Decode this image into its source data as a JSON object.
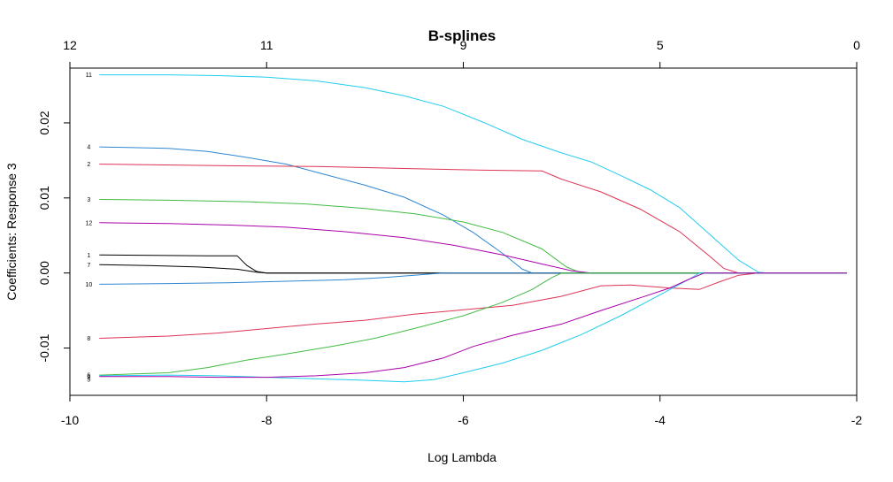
{
  "chart_data": {
    "type": "line",
    "title": "B-splines",
    "xlabel": "Log Lambda",
    "ylabel": "Coefficients: Response 3",
    "xlim": [
      -10,
      -2
    ],
    "ylim": [
      -0.0163,
      0.0273
    ],
    "x_ticks": [
      -10,
      -8,
      -6,
      -4,
      -2
    ],
    "x_tick_labels": [
      "-10",
      "-8",
      "-6",
      "-4",
      "-2"
    ],
    "y_ticks": [
      -0.01,
      0.0,
      0.01,
      0.02
    ],
    "y_tick_labels": [
      "-0.01",
      "0.00",
      "0.01",
      "0.02"
    ],
    "top_axis_ticks": [
      -10,
      -8,
      -6,
      -4,
      -2
    ],
    "top_axis_labels": [
      "12",
      "11",
      "9",
      "5",
      "0"
    ],
    "grid": false,
    "legend": "none",
    "series": [
      {
        "name": "11",
        "color": "#22CCEE",
        "points": [
          [
            -9.7,
            0.0264
          ],
          [
            -9.0,
            0.0264
          ],
          [
            -8.5,
            0.0263
          ],
          [
            -8.0,
            0.0261
          ],
          [
            -7.5,
            0.0256
          ],
          [
            -7.0,
            0.0247
          ],
          [
            -6.6,
            0.0236
          ],
          [
            -6.2,
            0.0222
          ],
          [
            -5.8,
            0.0201
          ],
          [
            -5.4,
            0.0178
          ],
          [
            -5.0,
            0.016
          ],
          [
            -4.7,
            0.0148
          ],
          [
            -4.4,
            0.013
          ],
          [
            -4.1,
            0.0111
          ],
          [
            -3.8,
            0.0087
          ],
          [
            -3.5,
            0.0052
          ],
          [
            -3.2,
            0.0017
          ],
          [
            -3.0,
            0.0001
          ],
          [
            -2.9,
            0.0
          ],
          [
            -2.1,
            0.0
          ]
        ]
      },
      {
        "name": "4",
        "color": "#2E86D1",
        "points": [
          [
            -9.7,
            0.0168
          ],
          [
            -9.0,
            0.0166
          ],
          [
            -8.6,
            0.0162
          ],
          [
            -8.2,
            0.0154
          ],
          [
            -7.8,
            0.0145
          ],
          [
            -7.4,
            0.0131
          ],
          [
            -7.0,
            0.0117
          ],
          [
            -6.6,
            0.0101
          ],
          [
            -6.2,
            0.0077
          ],
          [
            -5.9,
            0.0054
          ],
          [
            -5.6,
            0.0026
          ],
          [
            -5.4,
            0.0005
          ],
          [
            -5.3,
            0.0
          ],
          [
            -2.1,
            0.0
          ]
        ]
      },
      {
        "name": "2",
        "color": "#DD3355",
        "points": [
          [
            -9.7,
            0.0145
          ],
          [
            -8.5,
            0.0143
          ],
          [
            -7.5,
            0.0142
          ],
          [
            -6.5,
            0.0139
          ],
          [
            -5.8,
            0.0137
          ],
          [
            -5.2,
            0.0136
          ],
          [
            -5.0,
            0.0125
          ],
          [
            -4.6,
            0.0108
          ],
          [
            -4.2,
            0.0085
          ],
          [
            -3.8,
            0.0055
          ],
          [
            -3.5,
            0.0023
          ],
          [
            -3.35,
            0.0006
          ],
          [
            -3.2,
            0.0
          ],
          [
            -2.1,
            0.0
          ]
        ]
      },
      {
        "name": "3",
        "color": "#44BB44",
        "points": [
          [
            -9.7,
            0.0098
          ],
          [
            -9.0,
            0.0097
          ],
          [
            -8.2,
            0.0095
          ],
          [
            -7.6,
            0.0092
          ],
          [
            -7.0,
            0.0086
          ],
          [
            -6.5,
            0.0079
          ],
          [
            -6.0,
            0.0068
          ],
          [
            -5.6,
            0.0054
          ],
          [
            -5.2,
            0.0032
          ],
          [
            -4.95,
            0.0008
          ],
          [
            -4.8,
            0.0
          ],
          [
            -2.1,
            0.0
          ]
        ]
      },
      {
        "name": "12",
        "color": "#AA00AA",
        "points": [
          [
            -9.7,
            0.0067
          ],
          [
            -9.0,
            0.0066
          ],
          [
            -8.4,
            0.0064
          ],
          [
            -7.8,
            0.0061
          ],
          [
            -7.2,
            0.0055
          ],
          [
            -6.6,
            0.0047
          ],
          [
            -6.1,
            0.0037
          ],
          [
            -5.6,
            0.0024
          ],
          [
            -5.2,
            0.0012
          ],
          [
            -4.9,
            0.0003
          ],
          [
            -4.7,
            0.0
          ],
          [
            -2.1,
            0.0
          ]
        ]
      },
      {
        "name": "1",
        "color": "#000000",
        "points": [
          [
            -9.7,
            0.0024
          ],
          [
            -8.6,
            0.0023
          ],
          [
            -8.3,
            0.0023
          ],
          [
            -8.2,
            0.001
          ],
          [
            -8.1,
            0.0002
          ],
          [
            -8.0,
            0.0
          ],
          [
            -2.1,
            0.0
          ]
        ]
      },
      {
        "name": "7",
        "color": "#000000",
        "points": [
          [
            -9.7,
            0.0011
          ],
          [
            -9.2,
            0.001
          ],
          [
            -8.7,
            0.0008
          ],
          [
            -8.3,
            0.0005
          ],
          [
            -8.1,
            0.0001
          ],
          [
            -8.0,
            0.0
          ],
          [
            -2.1,
            0.0
          ]
        ]
      },
      {
        "name": "10",
        "color": "#2E86D1",
        "points": [
          [
            -9.7,
            -0.0015
          ],
          [
            -9.0,
            -0.0014
          ],
          [
            -8.4,
            -0.0013
          ],
          [
            -7.8,
            -0.0011
          ],
          [
            -7.2,
            -0.0009
          ],
          [
            -6.8,
            -0.0006
          ],
          [
            -6.5,
            -0.0003
          ],
          [
            -6.3,
            -0.0001
          ],
          [
            -6.2,
            0.0
          ],
          [
            -2.1,
            0.0
          ]
        ]
      },
      {
        "name": "8",
        "color": "#DD3355",
        "points": [
          [
            -9.7,
            -0.0087
          ],
          [
            -9.0,
            -0.0084
          ],
          [
            -8.5,
            -0.008
          ],
          [
            -8.0,
            -0.0074
          ],
          [
            -7.5,
            -0.0068
          ],
          [
            -7.0,
            -0.0063
          ],
          [
            -6.5,
            -0.0055
          ],
          [
            -6.0,
            -0.0049
          ],
          [
            -5.5,
            -0.0043
          ],
          [
            -5.0,
            -0.0031
          ],
          [
            -4.6,
            -0.0017
          ],
          [
            -4.3,
            -0.0016
          ],
          [
            -3.9,
            -0.002
          ],
          [
            -3.6,
            -0.0022
          ],
          [
            -3.4,
            -0.0012
          ],
          [
            -3.2,
            -0.0003
          ],
          [
            -3.0,
            0.0
          ],
          [
            -2.1,
            0.0
          ]
        ]
      },
      {
        "name": "6",
        "color": "#44BB44",
        "points": [
          [
            -9.7,
            -0.0136
          ],
          [
            -9.0,
            -0.0133
          ],
          [
            -8.6,
            -0.0126
          ],
          [
            -8.2,
            -0.0116
          ],
          [
            -7.8,
            -0.0108
          ],
          [
            -7.3,
            -0.0097
          ],
          [
            -6.9,
            -0.0087
          ],
          [
            -6.5,
            -0.0074
          ],
          [
            -6.0,
            -0.0057
          ],
          [
            -5.6,
            -0.0039
          ],
          [
            -5.3,
            -0.0022
          ],
          [
            -5.1,
            -0.0006
          ],
          [
            -5.0,
            0.0
          ],
          [
            -2.1,
            0.0
          ]
        ]
      },
      {
        "name": "9",
        "color": "#22CCEE",
        "points": [
          [
            -9.7,
            -0.0137
          ],
          [
            -9.0,
            -0.0136
          ],
          [
            -8.5,
            -0.0137
          ],
          [
            -8.0,
            -0.0139
          ],
          [
            -7.5,
            -0.0141
          ],
          [
            -7.0,
            -0.0143
          ],
          [
            -6.6,
            -0.0145
          ],
          [
            -6.3,
            -0.0142
          ],
          [
            -6.0,
            -0.0133
          ],
          [
            -5.6,
            -0.012
          ],
          [
            -5.2,
            -0.0103
          ],
          [
            -4.8,
            -0.0082
          ],
          [
            -4.4,
            -0.0057
          ],
          [
            -4.0,
            -0.0029
          ],
          [
            -3.7,
            -0.0008
          ],
          [
            -3.6,
            0.0
          ],
          [
            -2.1,
            0.0
          ]
        ]
      },
      {
        "name": "5",
        "color": "#AA00AA",
        "points": [
          [
            -9.7,
            -0.0138
          ],
          [
            -9.0,
            -0.0138
          ],
          [
            -8.5,
            -0.0139
          ],
          [
            -8.0,
            -0.0139
          ],
          [
            -7.5,
            -0.0137
          ],
          [
            -7.0,
            -0.0133
          ],
          [
            -6.6,
            -0.0126
          ],
          [
            -6.2,
            -0.0113
          ],
          [
            -5.9,
            -0.0098
          ],
          [
            -5.5,
            -0.0083
          ],
          [
            -5.0,
            -0.0068
          ],
          [
            -4.6,
            -0.005
          ],
          [
            -4.2,
            -0.0033
          ],
          [
            -3.9,
            -0.002
          ],
          [
            -3.7,
            -0.0008
          ],
          [
            -3.55,
            0.0
          ],
          [
            -2.1,
            0.0
          ]
        ]
      }
    ]
  }
}
